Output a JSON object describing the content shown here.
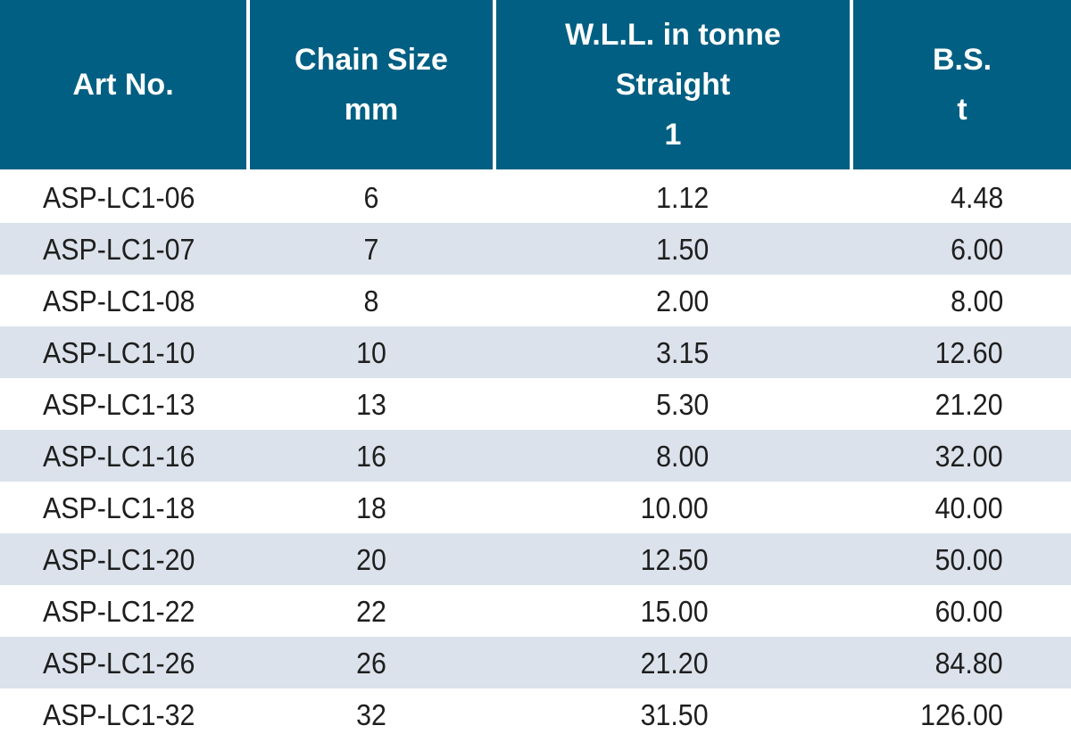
{
  "table": {
    "headers": [
      [
        "Art No."
      ],
      [
        "Chain Size",
        "mm"
      ],
      [
        "W.L.L. in tonne",
        "Straight",
        "1"
      ],
      [
        "B.S.",
        "t"
      ]
    ],
    "rows": [
      {
        "art": "ASP-LC1-06",
        "size": "6",
        "wll": "1.12",
        "bs": "4.48"
      },
      {
        "art": "ASP-LC1-07",
        "size": "7",
        "wll": "1.50",
        "bs": "6.00"
      },
      {
        "art": "ASP-LC1-08",
        "size": "8",
        "wll": "2.00",
        "bs": "8.00"
      },
      {
        "art": "ASP-LC1-10",
        "size": "10",
        "wll": "3.15",
        "bs": "12.60"
      },
      {
        "art": "ASP-LC1-13",
        "size": "13",
        "wll": "5.30",
        "bs": "21.20"
      },
      {
        "art": "ASP-LC1-16",
        "size": "16",
        "wll": "8.00",
        "bs": "32.00"
      },
      {
        "art": "ASP-LC1-18",
        "size": "18",
        "wll": "10.00",
        "bs": "40.00"
      },
      {
        "art": "ASP-LC1-20",
        "size": "20",
        "wll": "12.50",
        "bs": "50.00"
      },
      {
        "art": "ASP-LC1-22",
        "size": "22",
        "wll": "15.00",
        "bs": "60.00"
      },
      {
        "art": "ASP-LC1-26",
        "size": "26",
        "wll": "21.20",
        "bs": "84.80"
      },
      {
        "art": "ASP-LC1-32",
        "size": "32",
        "wll": "31.50",
        "bs": "126.00"
      }
    ]
  },
  "colors": {
    "header_bg": "#005f82",
    "header_text": "#ffffff",
    "alt_row_bg": "#dce2eb",
    "body_text": "#1e1e1e"
  }
}
